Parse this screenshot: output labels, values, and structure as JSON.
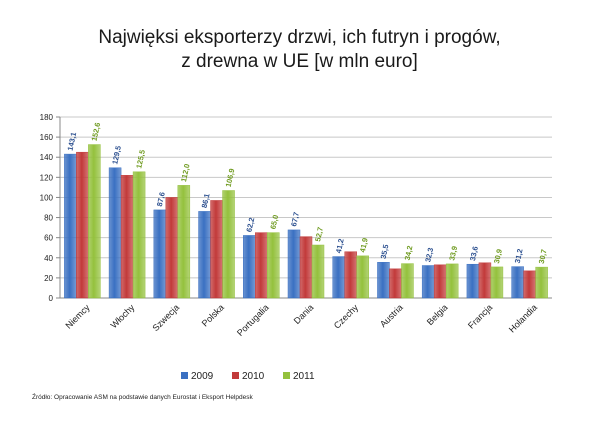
{
  "title_line1": "Najwięksi eksporterzy drzwi, ich futryn i progów,",
  "title_line2": "z drewna w UE [w mln euro]",
  "source": "Źródło: Opracowanie ASM na podstawie danych Eurostat i Eksport Helpdesk",
  "colors": {
    "2009": "#3a70c2",
    "2010": "#c23a3a",
    "2011": "#94c13d",
    "grid": "#c8c8c8",
    "axis": "#888888"
  },
  "chart_data": {
    "type": "bar",
    "title": "Najwięksi eksporterzy drzwi, ich futryn i progów, z drewna w UE [w mln euro]",
    "categories": [
      "Niemcy",
      "Włochy",
      "Szwecja",
      "Polska",
      "Portugalia",
      "Dania",
      "Czechy",
      "Austria",
      "Belgia",
      "Francja",
      "Holandia"
    ],
    "series": [
      {
        "name": "2009",
        "values": [
          143.1,
          129.5,
          87.6,
          86.1,
          62.2,
          67.7,
          41.2,
          35.5,
          32.3,
          33.6,
          31.2
        ],
        "labels": [
          "143,1",
          "129,5",
          "87,6",
          "86,1",
          "62,2",
          "67,7",
          "41,2",
          "35,5",
          "32,3",
          "33,6",
          "31,2"
        ]
      },
      {
        "name": "2010",
        "values": [
          145,
          122,
          100,
          97,
          65,
          61,
          46,
          29,
          33,
          35,
          27
        ],
        "labels": []
      },
      {
        "name": "2011",
        "values": [
          152.6,
          125.5,
          112.0,
          106.9,
          65.0,
          52.7,
          41.9,
          34.2,
          33.9,
          30.9,
          30.7
        ],
        "labels": [
          "152,6",
          "125,5",
          "112,0",
          "106,9",
          "65,0",
          "52,7",
          "41,9",
          "34,2",
          "33,9",
          "30,9",
          "30,7"
        ]
      }
    ],
    "yticks": [
      "0",
      "20",
      "40",
      "60",
      "80",
      "100",
      "120",
      "140",
      "160",
      "180"
    ],
    "ylim": [
      0,
      180
    ],
    "grid": true,
    "legend": "bottom"
  }
}
